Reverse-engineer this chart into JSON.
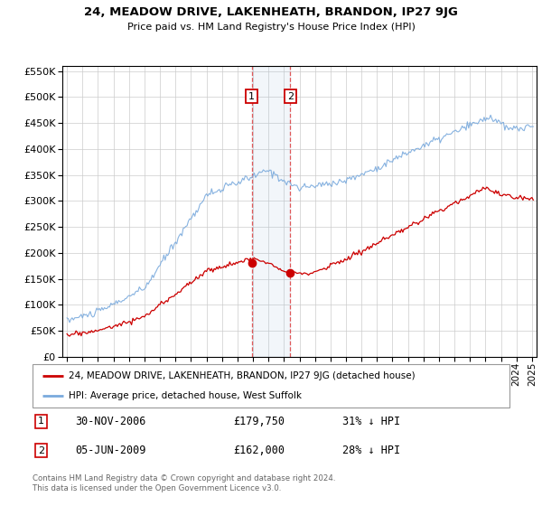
{
  "title": "24, MEADOW DRIVE, LAKENHEATH, BRANDON, IP27 9JG",
  "subtitle": "Price paid vs. HM Land Registry's House Price Index (HPI)",
  "hpi_label": "HPI: Average price, detached house, West Suffolk",
  "property_label": "24, MEADOW DRIVE, LAKENHEATH, BRANDON, IP27 9JG (detached house)",
  "transaction1_date": "30-NOV-2006",
  "transaction1_price": 179750,
  "transaction1_pct": "31% ↓ HPI",
  "transaction2_date": "05-JUN-2009",
  "transaction2_price": 162000,
  "transaction2_pct": "28% ↓ HPI",
  "footer": "Contains HM Land Registry data © Crown copyright and database right 2024.\nThis data is licensed under the Open Government Licence v3.0.",
  "hpi_color": "#7aaadd",
  "property_color": "#cc0000",
  "transaction1_x": 2006.917,
  "transaction2_x": 2009.417,
  "ylim_max": 560000,
  "xlim_min": 1994.7,
  "xlim_max": 2025.3,
  "background_color": "#ffffff"
}
